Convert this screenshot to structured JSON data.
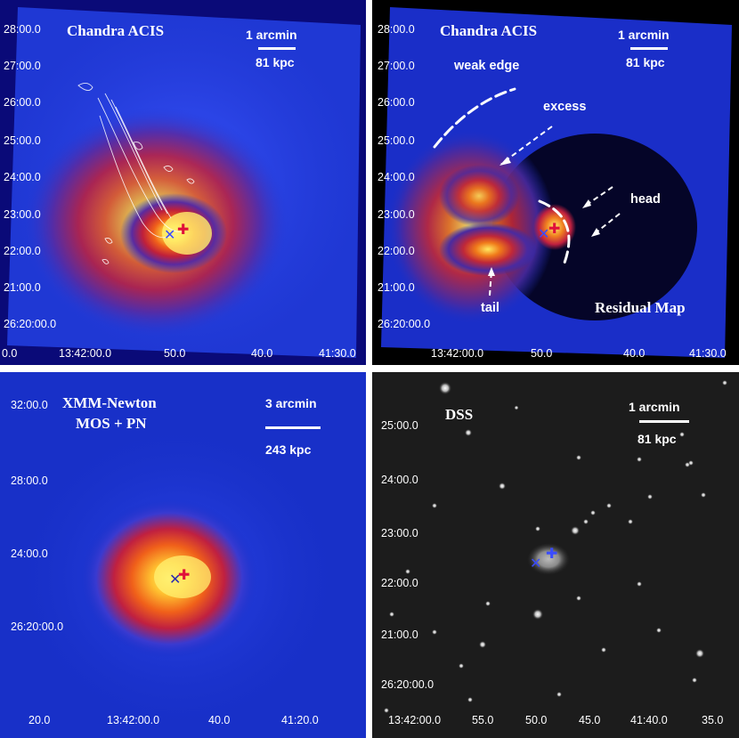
{
  "panels": {
    "chandra": {
      "title": "Chandra ACIS",
      "scale_top": "1 arcmin",
      "scale_bottom": "81 kpc",
      "dec_ticks": [
        "28:00.0",
        "27:00.0",
        "26:00.0",
        "25:00.0",
        "24:00.0",
        "23:00.0",
        "22:00.0",
        "21:00.0",
        "26:20:00.0"
      ],
      "ra_ticks": [
        "0.0",
        "13:42:00.0",
        "50.0",
        "40.0",
        "41:30.0"
      ]
    },
    "residual": {
      "title": "Chandra ACIS",
      "scale_top": "1 arcmin",
      "scale_bottom": "81 kpc",
      "label": "Residual Map",
      "annotations": {
        "weak_edge": "weak edge",
        "excess": "excess",
        "head": "head",
        "tail": "tail"
      },
      "dec_ticks": [
        "28:00.0",
        "27:00.0",
        "26:00.0",
        "25:00.0",
        "24:00.0",
        "23:00.0",
        "22:00.0",
        "21:00.0",
        "26:20:00.0"
      ],
      "ra_ticks": [
        "13:42:00.0",
        "50.0",
        "40.0",
        "41:30.0"
      ]
    },
    "xmm": {
      "title_line1": "XMM-Newton",
      "title_line2": "MOS + PN",
      "scale_top": "3 arcmin",
      "scale_bottom": "243 kpc",
      "dec_ticks": [
        "32:00.0",
        "28:00.0",
        "24:00.0",
        "26:20:00.0"
      ],
      "ra_ticks": [
        "20.0",
        "13:42:00.0",
        "40.0",
        "41:20.0"
      ]
    },
    "dss": {
      "title": "DSS",
      "scale_top": "1 arcmin",
      "scale_bottom": "81 kpc",
      "dec_ticks": [
        "25:00.0",
        "24:00.0",
        "23:00.0",
        "22:00.0",
        "21:00.0",
        "26:20:00.0"
      ],
      "ra_ticks": [
        "13:42:00.0",
        "55.0",
        "50.0",
        "45.0",
        "41:40.0",
        "35.0"
      ]
    }
  },
  "colors": {
    "background_blue": "#1a2fd6",
    "deep_blue": "#0a0a7a",
    "hot_core": "#ffe85a",
    "red": "#e02a1a",
    "marker_blue": "#2a3cff",
    "marker_red": "#e0103a"
  }
}
